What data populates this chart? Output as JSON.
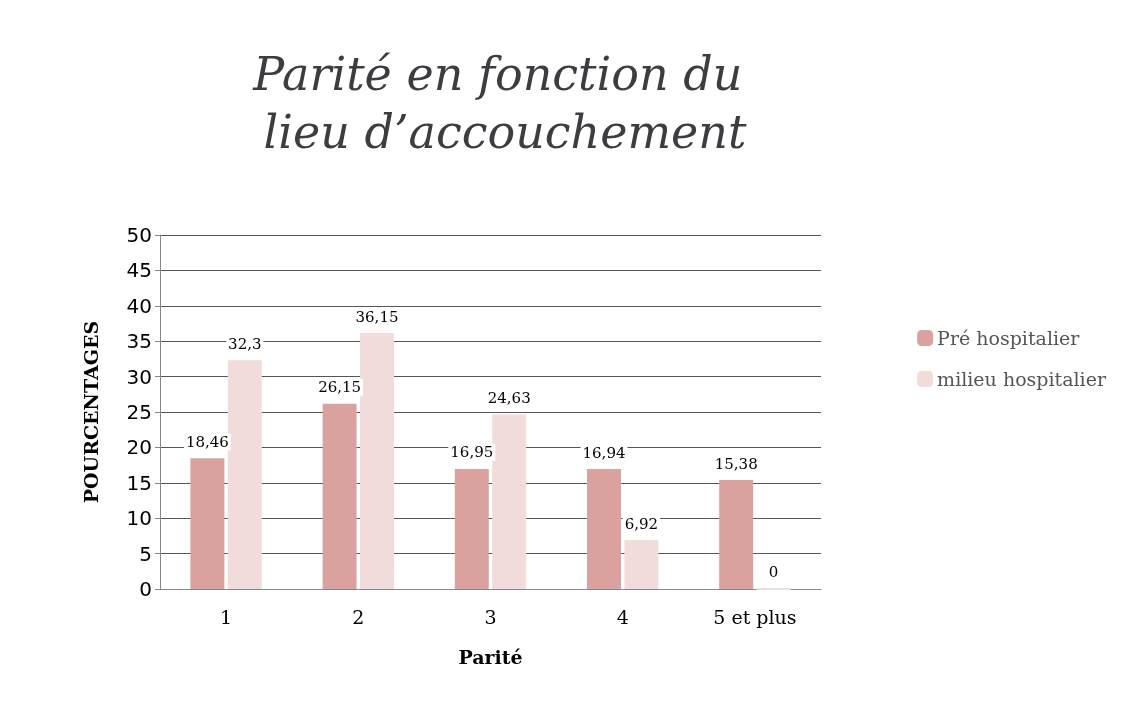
{
  "chart_data": {
    "type": "bar",
    "title": "Parité en fonction du lieu d’accouchement",
    "xlabel": "Parité",
    "ylabel": "POURCENTAGES",
    "categories": [
      "1",
      "2",
      "3",
      "4",
      "5 et plus"
    ],
    "series": [
      {
        "name": "Pré hospitalier",
        "color": "#d9a29e",
        "values": [
          18.46,
          26.15,
          16.95,
          16.94,
          15.38
        ],
        "value_labels": [
          "18,46",
          "26,15",
          "16,95",
          "16,94",
          "15,38"
        ]
      },
      {
        "name": "milieu hospitalier",
        "color": "#f2dcdb",
        "values": [
          32.3,
          36.15,
          24.63,
          6.92,
          0
        ],
        "value_labels": [
          "32,3",
          "36,15",
          "24,63",
          "6,92",
          "0"
        ]
      }
    ],
    "ylim": [
      0,
      50
    ],
    "yticks": [
      0,
      5,
      10,
      15,
      20,
      25,
      30,
      35,
      40,
      45,
      50
    ],
    "grid": "y",
    "legend": "right"
  }
}
